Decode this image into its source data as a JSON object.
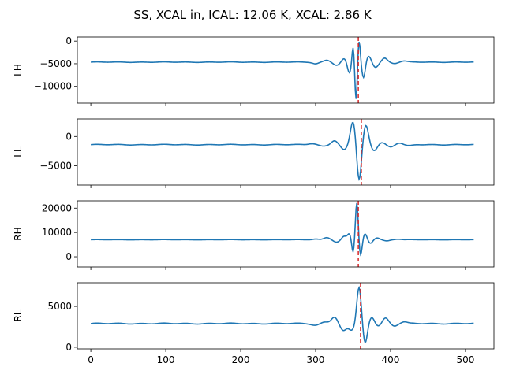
{
  "title": "SS, XCAL in, ICAL: 12.06 K, XCAL: 2.86 K",
  "colors": {
    "trace": "#1f77b4",
    "marker": "#d62728"
  },
  "chart_data": [
    {
      "type": "line",
      "ylabel": "LH",
      "xlim": [
        -18,
        538
      ],
      "ylim": [
        -13700,
        900
      ],
      "yticks": [
        0,
        -5000,
        -10000
      ],
      "baseline": -4650,
      "marker_x": 357,
      "features": [
        {
          "x": 300,
          "v": -350,
          "w": 4
        },
        {
          "x": 315,
          "v": 450,
          "w": 4
        },
        {
          "x": 328,
          "v": -700,
          "w": 4
        },
        {
          "x": 338,
          "v": 750,
          "w": 3
        },
        {
          "x": 345,
          "v": -2400,
          "w": 2.5
        },
        {
          "x": 350,
          "v": 3700,
          "w": 1.5
        },
        {
          "x": 354,
          "v": -8400,
          "w": 1.5
        },
        {
          "x": 358,
          "v": 4800,
          "w": 1.6
        },
        {
          "x": 364,
          "v": -3500,
          "w": 2.2
        },
        {
          "x": 371,
          "v": 1300,
          "w": 3
        },
        {
          "x": 380,
          "v": -1100,
          "w": 3.5
        },
        {
          "x": 392,
          "v": 900,
          "w": 3.5
        },
        {
          "x": 405,
          "v": -300,
          "w": 4
        },
        {
          "x": 418,
          "v": 250,
          "w": 4
        }
      ]
    },
    {
      "type": "line",
      "ylabel": "LL",
      "xlim": [
        -18,
        538
      ],
      "ylim": [
        -8300,
        3000
      ],
      "yticks": [
        0,
        -5000
      ],
      "baseline": -1400,
      "marker_x": 361,
      "features": [
        {
          "x": 295,
          "v": 200,
          "w": 5
        },
        {
          "x": 310,
          "v": -250,
          "w": 5
        },
        {
          "x": 325,
          "v": 700,
          "w": 4
        },
        {
          "x": 338,
          "v": -900,
          "w": 4
        },
        {
          "x": 350,
          "v": 4000,
          "w": 3.5
        },
        {
          "x": 358,
          "v": -6300,
          "w": 3
        },
        {
          "x": 367,
          "v": 3300,
          "w": 3.5
        },
        {
          "x": 378,
          "v": -1000,
          "w": 4
        },
        {
          "x": 388,
          "v": 400,
          "w": 4
        },
        {
          "x": 400,
          "v": -400,
          "w": 4
        },
        {
          "x": 412,
          "v": 300,
          "w": 4
        },
        {
          "x": 425,
          "v": -200,
          "w": 5
        }
      ]
    },
    {
      "type": "line",
      "ylabel": "RH",
      "xlim": [
        -18,
        538
      ],
      "ylim": [
        -4200,
        23000
      ],
      "yticks": [
        0,
        10000,
        20000
      ],
      "baseline": 7000,
      "marker_x": 357,
      "features": [
        {
          "x": 300,
          "v": 300,
          "w": 4
        },
        {
          "x": 315,
          "v": 900,
          "w": 4
        },
        {
          "x": 328,
          "v": -1000,
          "w": 4
        },
        {
          "x": 338,
          "v": 1400,
          "w": 3
        },
        {
          "x": 345,
          "v": 2400,
          "w": 2.5
        },
        {
          "x": 350,
          "v": -5500,
          "w": 1.8
        },
        {
          "x": 355,
          "v": 15500,
          "w": 1.8
        },
        {
          "x": 360,
          "v": -6500,
          "w": 2
        },
        {
          "x": 366,
          "v": 2500,
          "w": 2.5
        },
        {
          "x": 373,
          "v": -1500,
          "w": 3
        },
        {
          "x": 382,
          "v": 800,
          "w": 3.5
        },
        {
          "x": 395,
          "v": -500,
          "w": 4
        },
        {
          "x": 410,
          "v": 250,
          "w": 4
        }
      ]
    },
    {
      "type": "line",
      "ylabel": "RL",
      "xlim": [
        -18,
        538
      ],
      "ylim": [
        -200,
        7900
      ],
      "yticks": [
        0,
        5000
      ],
      "baseline": 2900,
      "marker_x": 360,
      "features": [
        {
          "x": 300,
          "v": -200,
          "w": 5
        },
        {
          "x": 313,
          "v": 200,
          "w": 5
        },
        {
          "x": 325,
          "v": 800,
          "w": 4
        },
        {
          "x": 337,
          "v": -900,
          "w": 4
        },
        {
          "x": 348,
          "v": -800,
          "w": 4
        },
        {
          "x": 358,
          "v": 4500,
          "w": 3
        },
        {
          "x": 366,
          "v": -2500,
          "w": 3
        },
        {
          "x": 375,
          "v": 800,
          "w": 3.5
        },
        {
          "x": 384,
          "v": -300,
          "w": 4
        },
        {
          "x": 393,
          "v": 700,
          "w": 4
        },
        {
          "x": 405,
          "v": -300,
          "w": 4
        },
        {
          "x": 418,
          "v": 200,
          "w": 4
        }
      ]
    }
  ],
  "x_axis": {
    "ticks": [
      0,
      100,
      200,
      300,
      400,
      500
    ],
    "n_points": 512
  }
}
